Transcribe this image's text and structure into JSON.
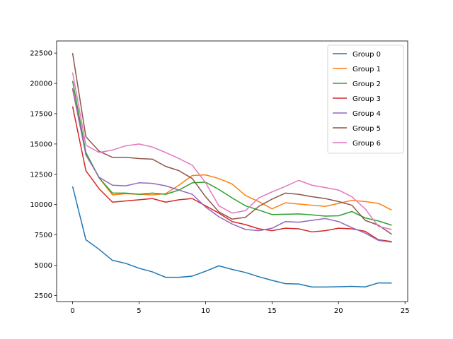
{
  "chart_data": {
    "type": "line",
    "title": "",
    "xlabel": "",
    "ylabel": "",
    "xlim": [
      -1.2,
      25.2
    ],
    "ylim": [
      2000,
      23500
    ],
    "x_ticks": [
      0,
      5,
      10,
      15,
      20,
      25
    ],
    "y_ticks": [
      2500,
      5000,
      7500,
      10000,
      12500,
      15000,
      17500,
      20000,
      22500
    ],
    "grid": false,
    "legend_position": "top-right",
    "x": [
      0,
      1,
      2,
      3,
      4,
      5,
      6,
      7,
      8,
      9,
      10,
      11,
      12,
      13,
      14,
      15,
      16,
      17,
      18,
      19,
      20,
      21,
      22,
      23,
      24
    ],
    "series": [
      {
        "name": "Group 0",
        "color": "#1f77b4",
        "values": [
          11500,
          7100,
          6300,
          5400,
          5150,
          4750,
          4450,
          4000,
          4000,
          4100,
          4500,
          4950,
          4650,
          4400,
          4050,
          3750,
          3480,
          3450,
          3200,
          3200,
          3220,
          3250,
          3210,
          3540,
          3530
        ]
      },
      {
        "name": "Group 1",
        "color": "#ff7f0e",
        "values": [
          19500,
          14200,
          12200,
          10800,
          10900,
          10850,
          10800,
          10900,
          11600,
          12400,
          12450,
          12150,
          11700,
          10750,
          10250,
          9650,
          10150,
          10050,
          9950,
          9850,
          10100,
          10350,
          10250,
          10100,
          9550
        ]
      },
      {
        "name": "Group 2",
        "color": "#2ca02c",
        "values": [
          20200,
          14300,
          12200,
          10950,
          10950,
          10850,
          10950,
          10850,
          11200,
          11800,
          11850,
          11250,
          10550,
          9900,
          9550,
          9180,
          9200,
          9230,
          9150,
          9050,
          9080,
          9430,
          8900,
          8650,
          8300
        ]
      },
      {
        "name": "Group 3",
        "color": "#d62728",
        "values": [
          18100,
          12800,
          11300,
          10200,
          10300,
          10400,
          10500,
          10200,
          10400,
          10500,
          9900,
          9300,
          8600,
          8350,
          8000,
          7850,
          8050,
          8000,
          7750,
          7850,
          8050,
          8000,
          7800,
          7100,
          6950
        ]
      },
      {
        "name": "Group 4",
        "color": "#9467bd",
        "values": [
          19600,
          14100,
          12250,
          11600,
          11550,
          11800,
          11750,
          11550,
          11200,
          10850,
          9800,
          9000,
          8400,
          7950,
          7850,
          8050,
          8600,
          8550,
          8700,
          8850,
          8600,
          8100,
          7650,
          7050,
          6900
        ]
      },
      {
        "name": "Group 5",
        "color": "#8c564b",
        "values": [
          22500,
          15600,
          14400,
          13900,
          13900,
          13800,
          13750,
          13150,
          12800,
          12150,
          10650,
          9400,
          8800,
          8950,
          9850,
          10450,
          10950,
          10850,
          10650,
          10500,
          10250,
          9950,
          8700,
          8300,
          7550
        ]
      },
      {
        "name": "Group 6",
        "color": "#e377c2",
        "values": [
          20900,
          14900,
          14300,
          14500,
          14850,
          15000,
          14750,
          14300,
          13800,
          13250,
          11800,
          9900,
          9300,
          9500,
          10550,
          11050,
          11500,
          12000,
          11600,
          11400,
          11200,
          10650,
          9650,
          8200,
          7950
        ]
      }
    ]
  }
}
